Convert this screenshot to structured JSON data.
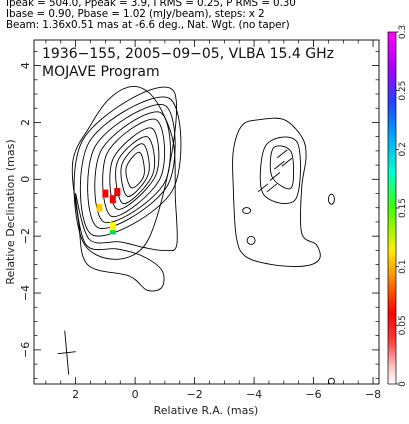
{
  "header": {
    "line1": "Ipeak = 504.0, Ppeak = 3.9, I RMS = 0.25, P RMS = 0.30",
    "line2": "Ibase = 0.90, Pbase = 1.02 (mJy/beam), steps: x 2",
    "line3": "Beam: 1.36x0.51 mas at -6.6 deg., Nat. Wgt. (no taper)"
  },
  "chart_data": {
    "type": "contour",
    "title": "1936−155, 2005−09−05, VLBA 15.4 GHz",
    "subtitle": "MOJAVE Program",
    "xlabel": "Relative R.A. (mas)",
    "ylabel": "Relative Declination (mas)",
    "xlim": [
      3.4,
      -8.2
    ],
    "ylim": [
      -7.2,
      4.9
    ],
    "x_ticks": [
      2,
      0,
      -2,
      -4,
      -6,
      -8
    ],
    "x_tick_labels": [
      "2",
      "0",
      "−2",
      "−4",
      "−6",
      "−8"
    ],
    "y_ticks": [
      4,
      2,
      0,
      -2,
      -4,
      -6
    ],
    "y_tick_labels": [
      "4",
      "2",
      "0",
      "−2",
      "−4",
      "−6"
    ],
    "colorbar": {
      "range": [
        0,
        0.3
      ],
      "ticks": [
        0,
        0.05,
        0.1,
        0.15,
        0.2,
        0.25,
        0.3
      ],
      "tick_labels": [
        "0",
        "0.05",
        "0.1",
        "0.15",
        "0.2",
        "0.25",
        "0.3"
      ]
    },
    "panels": [
      {
        "name": "total intensity",
        "center": [
          0.0,
          0.0
        ],
        "contours": [
          [
            [
              0.12,
              -0.3
            ],
            [
              -0.3,
              0.15
            ],
            [
              -0.15,
              0.95
            ],
            [
              0.3,
              0.4
            ]
          ],
          [
            [
              0.25,
              -0.6
            ],
            [
              -0.45,
              0.2
            ],
            [
              -0.25,
              1.25
            ],
            [
              0.45,
              0.5
            ]
          ],
          [
            [
              0.4,
              -0.85
            ],
            [
              -0.6,
              0.2
            ],
            [
              -0.4,
              1.5
            ],
            [
              0.6,
              0.6
            ]
          ],
          [
            [
              0.6,
              -1.05
            ],
            [
              -0.7,
              0.15
            ],
            [
              -0.55,
              1.8
            ],
            [
              0.75,
              0.7
            ]
          ],
          [
            [
              0.8,
              -1.3
            ],
            [
              -0.85,
              0.05
            ],
            [
              -0.7,
              2.1
            ],
            [
              0.95,
              0.9
            ]
          ],
          [
            [
              1.05,
              -1.5
            ],
            [
              -1.0,
              -0.1
            ],
            [
              -0.85,
              2.35
            ],
            [
              1.15,
              1.0
            ]
          ],
          [
            [
              1.25,
              -1.7
            ],
            [
              -1.1,
              -0.2
            ],
            [
              -1.0,
              2.6
            ],
            [
              1.35,
              1.15
            ]
          ],
          [
            [
              1.45,
              -1.95
            ],
            [
              -1.25,
              -0.4
            ],
            [
              -1.15,
              2.85
            ],
            [
              1.55,
              1.3
            ]
          ],
          [
            [
              1.7,
              -2.3
            ],
            [
              -0.4,
              -2.2
            ],
            [
              -1.3,
              3.1
            ],
            [
              1.75,
              1.4
            ]
          ]
        ],
        "outer_contour": [
          [
            2.0,
            -0.5
          ],
          [
            1.65,
            -2.3
          ],
          [
            0.6,
            -2.45
          ],
          [
            -0.25,
            -2.7
          ],
          [
            -0.9,
            -3.2
          ],
          [
            -0.9,
            -3.8
          ],
          [
            -0.4,
            -3.9
          ],
          [
            0.2,
            -3.4
          ],
          [
            1.6,
            -3.0
          ],
          [
            1.9,
            -1.5
          ],
          [
            2.1,
            0.6
          ],
          [
            1.5,
            1.9
          ],
          [
            0.9,
            2.8
          ],
          [
            0.2,
            3.25
          ],
          [
            -0.4,
            3.1
          ],
          [
            -0.9,
            2.4
          ],
          [
            -1.3,
            1.2
          ],
          [
            -1.35,
            -0.6
          ],
          [
            -1.4,
            -2.3
          ],
          [
            -1.0,
            -2.5
          ],
          [
            -0.3,
            -2.4
          ],
          [
            0.5,
            -2.2
          ],
          [
            1.55,
            -2.1
          ]
        ],
        "pol_colored_pixels": [
          {
            "x": 1.0,
            "y": -0.5,
            "value": 0.04,
            "color": "#ff0000"
          },
          {
            "x": 0.75,
            "y": -0.7,
            "value": 0.04,
            "color": "#ff0000"
          },
          {
            "x": 0.6,
            "y": -0.45,
            "value": 0.04,
            "color": "#ee0000"
          },
          {
            "x": 1.2,
            "y": -1.0,
            "value": 0.11,
            "color": "#ffcc00"
          },
          {
            "x": 0.75,
            "y": -1.8,
            "value": 0.17,
            "color": "#00dd66"
          },
          {
            "x": 0.75,
            "y": -1.65,
            "value": 0.14,
            "color": "#ffff00"
          }
        ],
        "beam": {
          "major": 1.36,
          "minor": 0.51,
          "pa": -6.6,
          "center": [
            2.3,
            -6.1
          ]
        }
      },
      {
        "name": "polarized intensity",
        "center": [
          -5.0,
          0.0
        ],
        "contours": [
          [
            [
              -4.6,
              0.1
            ],
            [
              -5.25,
              -0.3
            ],
            [
              -5.25,
              0.95
            ],
            [
              -4.65,
              1.1
            ]
          ],
          [
            [
              -4.3,
              -0.5
            ],
            [
              -5.4,
              -0.7
            ],
            [
              -5.45,
              1.3
            ],
            [
              -4.4,
              1.2
            ]
          ]
        ],
        "outer_contour": [
          [
            -3.3,
            -0.3
          ],
          [
            -3.4,
            -2.0
          ],
          [
            -3.7,
            -2.7
          ],
          [
            -4.6,
            -3.0
          ],
          [
            -5.7,
            -3.05
          ],
          [
            -6.2,
            -2.8
          ],
          [
            -6.1,
            -2.3
          ],
          [
            -5.6,
            -1.9
          ],
          [
            -5.6,
            -0.3
          ],
          [
            -5.75,
            0.8
          ],
          [
            -5.6,
            1.5
          ],
          [
            -5.0,
            2.1
          ],
          [
            -4.2,
            2.1
          ],
          [
            -3.6,
            1.9
          ],
          [
            -3.3,
            1.0
          ]
        ]
      }
    ]
  }
}
